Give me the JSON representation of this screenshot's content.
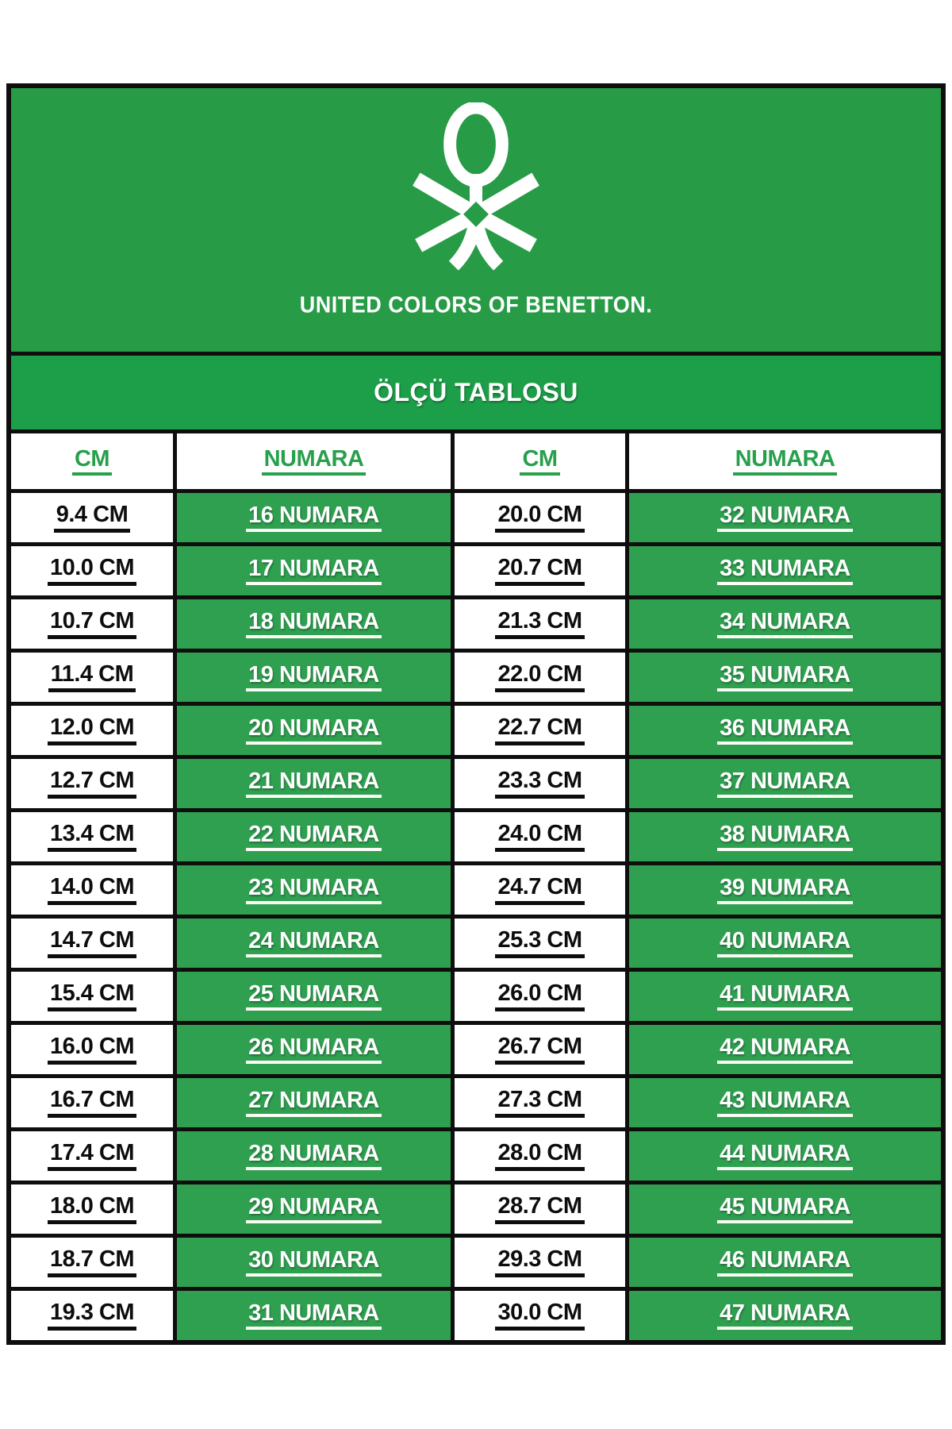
{
  "brand": {
    "logo_icon": "benetton-knot-icon",
    "wordmark": "UNITED COLORS OF BENETTON."
  },
  "title": "ÖLÇÜ TABLOSU",
  "colors": {
    "header_green": "#289b47",
    "band_green": "#1d9e49",
    "cell_green": "#2fa050",
    "border_black": "#0e0e0e",
    "header_text_green": "#27a04c"
  },
  "table": {
    "headers": [
      "CM",
      "NUMARA",
      "CM",
      "NUMARA"
    ],
    "rows": [
      [
        "9.4 CM",
        "16 NUMARA",
        "20.0 CM",
        "32 NUMARA"
      ],
      [
        "10.0 CM",
        "17 NUMARA",
        "20.7 CM",
        "33 NUMARA"
      ],
      [
        "10.7 CM",
        "18 NUMARA",
        "21.3 CM",
        "34 NUMARA"
      ],
      [
        "11.4 CM",
        "19 NUMARA",
        "22.0 CM",
        "35 NUMARA"
      ],
      [
        "12.0 CM",
        "20 NUMARA",
        "22.7 CM",
        "36 NUMARA"
      ],
      [
        "12.7 CM",
        "21 NUMARA",
        "23.3 CM",
        "37 NUMARA"
      ],
      [
        "13.4 CM",
        "22 NUMARA",
        "24.0 CM",
        "38 NUMARA"
      ],
      [
        "14.0 CM",
        "23 NUMARA",
        "24.7 CM",
        "39 NUMARA"
      ],
      [
        "14.7 CM",
        "24 NUMARA",
        "25.3 CM",
        "40 NUMARA"
      ],
      [
        "15.4 CM",
        "25 NUMARA",
        "26.0 CM",
        "41 NUMARA"
      ],
      [
        "16.0 CM",
        "26 NUMARA",
        "26.7 CM",
        "42 NUMARA"
      ],
      [
        "16.7 CM",
        "27 NUMARA",
        "27.3 CM",
        "43 NUMARA"
      ],
      [
        "17.4 CM",
        "28 NUMARA",
        "28.0 CM",
        "44 NUMARA"
      ],
      [
        "18.0 CM",
        "29 NUMARA",
        "28.7 CM",
        "45 NUMARA"
      ],
      [
        "18.7 CM",
        "30 NUMARA",
        "29.3 CM",
        "46 NUMARA"
      ],
      [
        "19.3 CM",
        "31 NUMARA",
        "30.0 CM",
        "47 NUMARA"
      ]
    ]
  }
}
